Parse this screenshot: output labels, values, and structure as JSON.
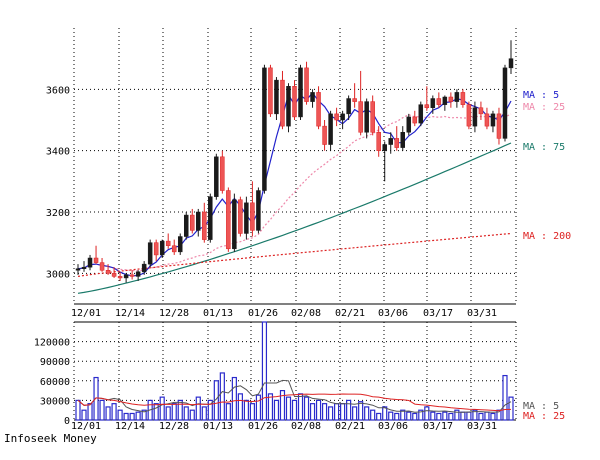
{
  "footer": "Infoseek Money",
  "chart_data": [
    {
      "type": "candlestick",
      "title": "",
      "x_tick_labels": [
        "12/01",
        "12/14",
        "12/28",
        "01/13",
        "01/26",
        "02/08",
        "02/21",
        "03/06",
        "03/17",
        "03/31"
      ],
      "y_ticks": [
        3000,
        3200,
        3400,
        3600
      ],
      "ylim": [
        2900,
        3800
      ],
      "grid": true,
      "legend": [
        {
          "label": "MA : 5",
          "color": "#2222cc"
        },
        {
          "label": "MA : 25",
          "color": "#ee88aa"
        },
        {
          "label": "MA : 75",
          "color": "#1a7a6a"
        },
        {
          "label": "MA : 200",
          "color": "#dd2222"
        }
      ],
      "candles": [
        {
          "o": 3010,
          "h": 3030,
          "l": 2995,
          "c": 3015
        },
        {
          "o": 3015,
          "h": 3040,
          "l": 3005,
          "c": 3020
        },
        {
          "o": 3020,
          "h": 3060,
          "l": 3010,
          "c": 3050
        },
        {
          "o": 3050,
          "h": 3090,
          "l": 3030,
          "c": 3035
        },
        {
          "o": 3035,
          "h": 3050,
          "l": 3005,
          "c": 3010
        },
        {
          "o": 3010,
          "h": 3030,
          "l": 2995,
          "c": 3000
        },
        {
          "o": 3000,
          "h": 3020,
          "l": 2985,
          "c": 2990
        },
        {
          "o": 2990,
          "h": 3005,
          "l": 2975,
          "c": 2985
        },
        {
          "o": 2985,
          "h": 3000,
          "l": 2970,
          "c": 2995
        },
        {
          "o": 2995,
          "h": 3010,
          "l": 2980,
          "c": 2990
        },
        {
          "o": 2990,
          "h": 3010,
          "l": 2975,
          "c": 3005
        },
        {
          "o": 3005,
          "h": 3040,
          "l": 2995,
          "c": 3030
        },
        {
          "o": 3030,
          "h": 3110,
          "l": 3020,
          "c": 3100
        },
        {
          "o": 3100,
          "h": 3110,
          "l": 3040,
          "c": 3060
        },
        {
          "o": 3060,
          "h": 3110,
          "l": 3050,
          "c": 3105
        },
        {
          "o": 3105,
          "h": 3130,
          "l": 3080,
          "c": 3090
        },
        {
          "o": 3090,
          "h": 3110,
          "l": 3060,
          "c": 3070
        },
        {
          "o": 3070,
          "h": 3130,
          "l": 3060,
          "c": 3120
        },
        {
          "o": 3120,
          "h": 3200,
          "l": 3110,
          "c": 3190
        },
        {
          "o": 3190,
          "h": 3210,
          "l": 3130,
          "c": 3140
        },
        {
          "o": 3140,
          "h": 3210,
          "l": 3120,
          "c": 3200
        },
        {
          "o": 3200,
          "h": 3230,
          "l": 3100,
          "c": 3110
        },
        {
          "o": 3110,
          "h": 3260,
          "l": 3100,
          "c": 3250
        },
        {
          "o": 3250,
          "h": 3390,
          "l": 3240,
          "c": 3380
        },
        {
          "o": 3380,
          "h": 3400,
          "l": 3260,
          "c": 3270
        },
        {
          "o": 3270,
          "h": 3280,
          "l": 3070,
          "c": 3080
        },
        {
          "o": 3080,
          "h": 3260,
          "l": 3070,
          "c": 3240
        },
        {
          "o": 3240,
          "h": 3250,
          "l": 3120,
          "c": 3130
        },
        {
          "o": 3130,
          "h": 3250,
          "l": 3110,
          "c": 3230
        },
        {
          "o": 3230,
          "h": 3300,
          "l": 3120,
          "c": 3140
        },
        {
          "o": 3140,
          "h": 3280,
          "l": 3130,
          "c": 3270
        },
        {
          "o": 3270,
          "h": 3680,
          "l": 3260,
          "c": 3670
        },
        {
          "o": 3670,
          "h": 3680,
          "l": 3510,
          "c": 3520
        },
        {
          "o": 3520,
          "h": 3640,
          "l": 3500,
          "c": 3630
        },
        {
          "o": 3630,
          "h": 3660,
          "l": 3470,
          "c": 3480
        },
        {
          "o": 3480,
          "h": 3620,
          "l": 3460,
          "c": 3610
        },
        {
          "o": 3610,
          "h": 3630,
          "l": 3500,
          "c": 3510
        },
        {
          "o": 3510,
          "h": 3680,
          "l": 3500,
          "c": 3670
        },
        {
          "o": 3670,
          "h": 3690,
          "l": 3550,
          "c": 3560
        },
        {
          "o": 3560,
          "h": 3600,
          "l": 3540,
          "c": 3590
        },
        {
          "o": 3590,
          "h": 3610,
          "l": 3470,
          "c": 3480
        },
        {
          "o": 3480,
          "h": 3500,
          "l": 3400,
          "c": 3420
        },
        {
          "o": 3420,
          "h": 3530,
          "l": 3400,
          "c": 3520
        },
        {
          "o": 3520,
          "h": 3540,
          "l": 3480,
          "c": 3500
        },
        {
          "o": 3500,
          "h": 3530,
          "l": 3470,
          "c": 3520
        },
        {
          "o": 3520,
          "h": 3580,
          "l": 3500,
          "c": 3570
        },
        {
          "o": 3570,
          "h": 3620,
          "l": 3540,
          "c": 3560
        },
        {
          "o": 3560,
          "h": 3660,
          "l": 3450,
          "c": 3460
        },
        {
          "o": 3460,
          "h": 3570,
          "l": 3440,
          "c": 3560
        },
        {
          "o": 3560,
          "h": 3580,
          "l": 3450,
          "c": 3460
        },
        {
          "o": 3460,
          "h": 3480,
          "l": 3380,
          "c": 3400
        },
        {
          "o": 3400,
          "h": 3430,
          "l": 3300,
          "c": 3420
        },
        {
          "o": 3420,
          "h": 3460,
          "l": 3390,
          "c": 3440
        },
        {
          "o": 3440,
          "h": 3480,
          "l": 3400,
          "c": 3410
        },
        {
          "o": 3410,
          "h": 3480,
          "l": 3400,
          "c": 3460
        },
        {
          "o": 3460,
          "h": 3520,
          "l": 3450,
          "c": 3510
        },
        {
          "o": 3510,
          "h": 3530,
          "l": 3480,
          "c": 3490
        },
        {
          "o": 3490,
          "h": 3560,
          "l": 3480,
          "c": 3550
        },
        {
          "o": 3550,
          "h": 3610,
          "l": 3530,
          "c": 3540
        },
        {
          "o": 3540,
          "h": 3580,
          "l": 3520,
          "c": 3570
        },
        {
          "o": 3570,
          "h": 3590,
          "l": 3540,
          "c": 3550
        },
        {
          "o": 3550,
          "h": 3580,
          "l": 3530,
          "c": 3575
        },
        {
          "o": 3575,
          "h": 3590,
          "l": 3540,
          "c": 3560
        },
        {
          "o": 3560,
          "h": 3600,
          "l": 3540,
          "c": 3590
        },
        {
          "o": 3590,
          "h": 3600,
          "l": 3540,
          "c": 3550
        },
        {
          "o": 3550,
          "h": 3560,
          "l": 3470,
          "c": 3480
        },
        {
          "o": 3480,
          "h": 3560,
          "l": 3460,
          "c": 3540
        },
        {
          "o": 3540,
          "h": 3560,
          "l": 3500,
          "c": 3520
        },
        {
          "o": 3520,
          "h": 3540,
          "l": 3470,
          "c": 3480
        },
        {
          "o": 3480,
          "h": 3530,
          "l": 3460,
          "c": 3520
        },
        {
          "o": 3520,
          "h": 3540,
          "l": 3420,
          "c": 3440
        },
        {
          "o": 3440,
          "h": 3680,
          "l": 3430,
          "c": 3670
        },
        {
          "o": 3670,
          "h": 3760,
          "l": 3650,
          "c": 3700
        }
      ]
    },
    {
      "type": "bar",
      "title": "",
      "x_tick_labels": [
        "12/01",
        "12/14",
        "12/28",
        "01/13",
        "01/26",
        "02/08",
        "02/21",
        "03/06",
        "03/17",
        "03/31"
      ],
      "y_ticks": [
        0,
        30000,
        60000,
        90000,
        120000
      ],
      "y_tick_labels": [
        "0",
        "30000",
        "60000",
        "90000",
        "120000"
      ],
      "ylim": [
        0,
        150000
      ],
      "grid": true,
      "legend": [
        {
          "label": "MA : 5",
          "color": "#555555"
        },
        {
          "label": "MA : 25",
          "color": "#dd2222"
        }
      ],
      "volumes": [
        30000,
        15000,
        25000,
        65000,
        30000,
        20000,
        25000,
        15000,
        10000,
        10000,
        12000,
        15000,
        30000,
        25000,
        35000,
        20000,
        25000,
        30000,
        20000,
        15000,
        35000,
        20000,
        30000,
        60000,
        72000,
        25000,
        65000,
        40000,
        30000,
        25000,
        38000,
        150000,
        40000,
        30000,
        45000,
        35000,
        30000,
        40000,
        35000,
        25000,
        30000,
        25000,
        20000,
        25000,
        25000,
        30000,
        20000,
        28000,
        20000,
        15000,
        10000,
        20000,
        12000,
        10000,
        15000,
        12000,
        10000,
        15000,
        20000,
        12000,
        10000,
        12000,
        10000,
        15000,
        12000,
        12000,
        15000,
        10000,
        12000,
        10000,
        15000,
        68000,
        35000
      ]
    }
  ]
}
